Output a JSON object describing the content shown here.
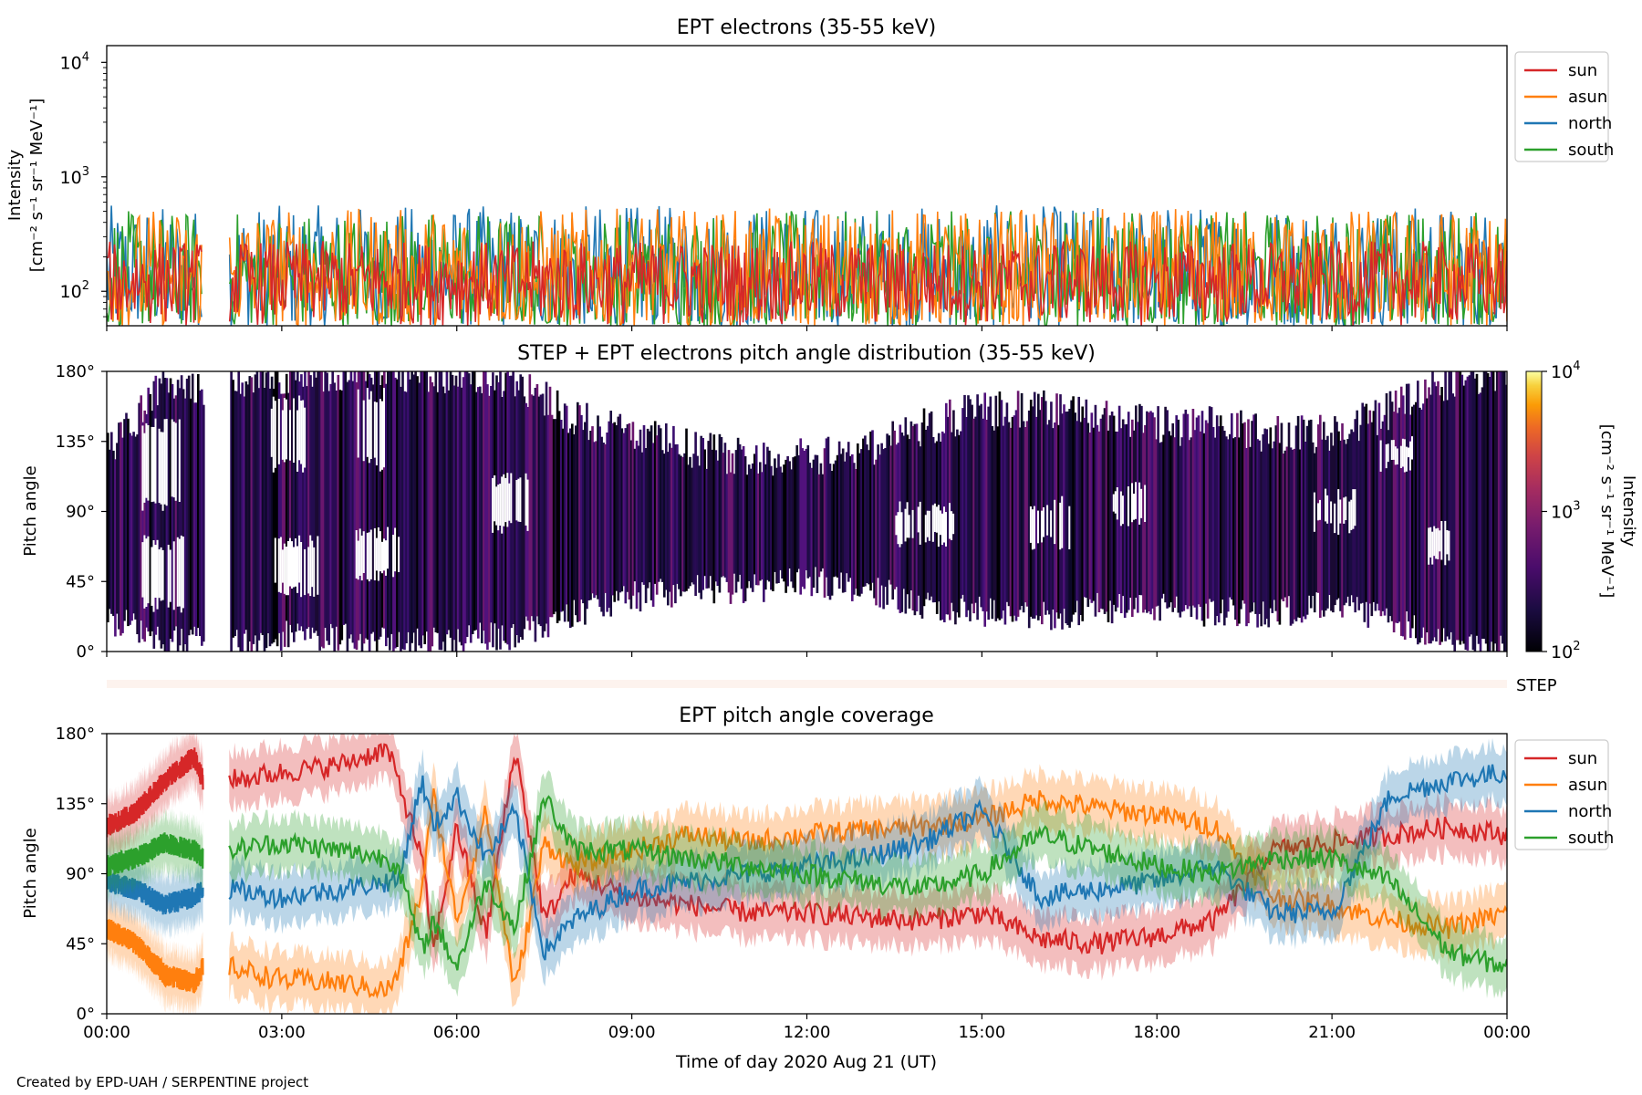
{
  "figure": {
    "footer": "Created by EPD-UAH / SERPENTINE project",
    "xlabel": "Time of day 2020 Aug 21 (UT)",
    "xticks": [
      "00:00",
      "03:00",
      "06:00",
      "09:00",
      "12:00",
      "15:00",
      "18:00",
      "21:00",
      "00:00"
    ],
    "xlim_hours": [
      0,
      24
    ]
  },
  "chart_data": [
    {
      "type": "line",
      "title": "EPT electrons (35-55 keV)",
      "ylabel": "Intensity",
      "yunit": "[cm⁻² s⁻¹ sr⁻¹ MeV⁻¹]",
      "yscale": "log",
      "ylim": [
        50,
        14000
      ],
      "yticks": [
        {
          "value": 100,
          "base": "10",
          "exp": "2"
        },
        {
          "value": 1000,
          "base": "10",
          "exp": "3"
        },
        {
          "value": 10000,
          "base": "10",
          "exp": "4"
        }
      ],
      "legend_position": "outside-right-top",
      "series": [
        {
          "name": "sun",
          "color": "#d62728",
          "typical_range": [
            50,
            300
          ],
          "note_values": "noisy counts"
        },
        {
          "name": "asun",
          "color": "#ff7f0e",
          "typical_range": [
            50,
            650
          ]
        },
        {
          "name": "north",
          "color": "#1f77b4",
          "typical_range": [
            50,
            700
          ]
        },
        {
          "name": "south",
          "color": "#2ca02c",
          "typical_range": [
            50,
            620
          ]
        }
      ],
      "data_gap_hours": [
        1.65,
        2.1
      ]
    },
    {
      "type": "heatmap",
      "title": "STEP + EPT electrons pitch angle distribution (35-55 keV)",
      "ylabel": "Pitch angle",
      "ylim_deg": [
        0,
        180
      ],
      "yticks": [
        "0°",
        "45°",
        "90°",
        "135°",
        "180°"
      ],
      "colormap": "inferno",
      "colorbar": {
        "label": "Intensity",
        "unit": "[cm⁻² s⁻¹ sr⁻¹ MeV⁻¹]",
        "scale": "log",
        "range": [
          100,
          10000
        ],
        "ticks": [
          {
            "base": "10",
            "exp": "2"
          },
          {
            "base": "10",
            "exp": "3"
          },
          {
            "base": "10",
            "exp": "4"
          }
        ]
      },
      "coverage_hours": [
        [
          0.0,
          20,
          130
        ],
        [
          0.5,
          15,
          150
        ],
        [
          1.0,
          5,
          175
        ],
        [
          1.5,
          10,
          170
        ],
        [
          2.2,
          5,
          175
        ],
        [
          3.0,
          10,
          178
        ],
        [
          4.0,
          8,
          180
        ],
        [
          5.0,
          5,
          180
        ],
        [
          6.0,
          8,
          178
        ],
        [
          7.0,
          10,
          175
        ],
        [
          8.0,
          25,
          150
        ],
        [
          9.0,
          35,
          140
        ],
        [
          10.0,
          40,
          130
        ],
        [
          11.0,
          40,
          125
        ],
        [
          12.0,
          45,
          125
        ],
        [
          13.0,
          40,
          130
        ],
        [
          14.0,
          30,
          145
        ],
        [
          15.0,
          25,
          155
        ],
        [
          16.0,
          22,
          155
        ],
        [
          17.0,
          28,
          150
        ],
        [
          18.0,
          28,
          145
        ],
        [
          19.0,
          25,
          145
        ],
        [
          20.0,
          25,
          140
        ],
        [
          21.0,
          30,
          140
        ],
        [
          22.0,
          20,
          155
        ],
        [
          23.0,
          5,
          175
        ],
        [
          24.0,
          0,
          178
        ]
      ],
      "data_gap_hours": [
        1.65,
        2.1
      ]
    },
    {
      "type": "bar",
      "title": "",
      "label": "STEP",
      "color": "#fdf3ee",
      "range_hours": [
        0,
        24
      ]
    },
    {
      "type": "line",
      "title": "EPT pitch angle coverage",
      "ylabel": "Pitch angle",
      "ylim_deg": [
        0,
        180
      ],
      "yticks": [
        "0°",
        "45°",
        "90°",
        "135°",
        "180°"
      ],
      "legend_position": "outside-right-top",
      "band_halfwidth_deg": 17,
      "series": [
        {
          "name": "sun",
          "color": "#d62728",
          "x": [
            0,
            0.5,
            1.0,
            1.5,
            1.65,
            2.1,
            3,
            4,
            4.8,
            5.0,
            5.4,
            5.6,
            6,
            6.5,
            7,
            7.5,
            8,
            9,
            10,
            11,
            12,
            13,
            14,
            15,
            16,
            17,
            18,
            19,
            20,
            21,
            22,
            23,
            24
          ],
          "y": [
            120,
            130,
            150,
            165,
            150,
            150,
            155,
            160,
            170,
            150,
            100,
            40,
            120,
            50,
            170,
            60,
            90,
            75,
            70,
            65,
            65,
            62,
            60,
            65,
            48,
            45,
            50,
            60,
            105,
            110,
            115,
            120,
            115
          ]
        },
        {
          "name": "asun",
          "color": "#ff7f0e",
          "x": [
            0,
            0.5,
            1.0,
            1.5,
            1.65,
            2.1,
            3,
            4,
            4.8,
            5.0,
            5.4,
            5.6,
            6,
            6.5,
            7,
            7.5,
            8,
            9,
            10,
            11,
            12,
            13,
            14,
            15,
            16,
            17,
            18,
            19,
            20,
            21,
            22,
            23,
            24
          ],
          "y": [
            55,
            45,
            25,
            20,
            30,
            30,
            22,
            20,
            15,
            25,
            80,
            140,
            60,
            130,
            15,
            110,
            95,
            105,
            115,
            110,
            115,
            118,
            120,
            125,
            138,
            132,
            128,
            120,
            75,
            70,
            60,
            55,
            65
          ]
        },
        {
          "name": "north",
          "color": "#1f77b4",
          "x": [
            0,
            0.5,
            1.0,
            1.5,
            1.65,
            2.1,
            3,
            4,
            4.8,
            5.0,
            5.4,
            5.6,
            6,
            6.5,
            7,
            7.5,
            8,
            9,
            10,
            11,
            12,
            13,
            14,
            15,
            16,
            17,
            18,
            19,
            20,
            21,
            22,
            23,
            24
          ],
          "y": [
            85,
            80,
            70,
            75,
            80,
            80,
            75,
            80,
            85,
            85,
            150,
            120,
            140,
            100,
            130,
            40,
            60,
            80,
            85,
            90,
            95,
            100,
            110,
            130,
            75,
            80,
            85,
            95,
            65,
            65,
            140,
            150,
            155
          ]
        },
        {
          "name": "south",
          "color": "#2ca02c",
          "x": [
            0,
            0.5,
            1.0,
            1.5,
            1.65,
            2.1,
            3,
            4,
            4.8,
            5.0,
            5.4,
            5.6,
            6,
            6.5,
            7,
            7.5,
            8,
            9,
            10,
            11,
            12,
            13,
            14,
            15,
            16,
            17,
            18,
            19,
            20,
            21,
            22,
            23,
            24
          ],
          "y": [
            95,
            100,
            110,
            105,
            100,
            105,
            110,
            105,
            100,
            95,
            40,
            60,
            30,
            85,
            55,
            140,
            105,
            105,
            100,
            95,
            90,
            85,
            80,
            90,
            115,
            105,
            95,
            90,
            100,
            100,
            85,
            40,
            30
          ]
        }
      ],
      "data_gap_hours": [
        1.65,
        2.1
      ]
    }
  ]
}
